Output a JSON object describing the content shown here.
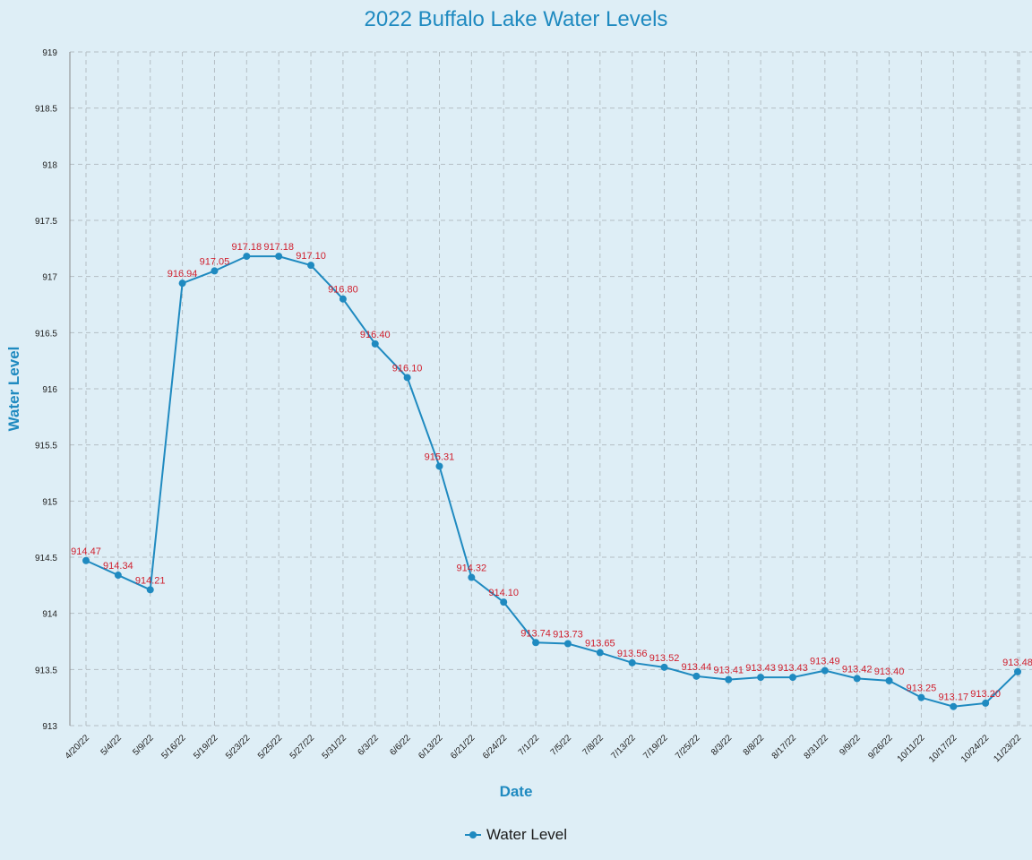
{
  "chart_data": {
    "type": "line",
    "title": "2022 Buffalo Lake Water Levels",
    "xlabel": "Date",
    "ylabel": "Water Level",
    "ylim": [
      913,
      919
    ],
    "yticks": [
      "913",
      "913.5",
      "914",
      "914.5",
      "915",
      "915.5",
      "916",
      "916.5",
      "917",
      "917.5",
      "918",
      "918.5",
      "919"
    ],
    "grid": true,
    "legend_position": "bottom",
    "categories": [
      "4/20/22",
      "5/4/22",
      "5/9/22",
      "5/16/22",
      "5/19/22",
      "5/23/22",
      "5/25/22",
      "5/27/22",
      "5/31/22",
      "6/3/22",
      "6/6/22",
      "6/13/22",
      "6/21/22",
      "6/24/22",
      "7/1/22",
      "7/5/22",
      "7/8/22",
      "7/13/22",
      "7/19/22",
      "7/25/22",
      "8/3/22",
      "8/8/22",
      "8/17/22",
      "8/31/22",
      "9/9/22",
      "9/26/22",
      "10/11/22",
      "10/17/22",
      "10/24/22",
      "11/23/22"
    ],
    "series": [
      {
        "name": "Water Level",
        "color": "#1f8ac0",
        "label_color": "#d0202e",
        "values": [
          914.47,
          914.34,
          914.21,
          916.94,
          917.05,
          917.18,
          917.18,
          917.1,
          916.8,
          916.4,
          916.1,
          915.31,
          914.32,
          914.1,
          913.74,
          913.73,
          913.65,
          913.56,
          913.52,
          913.44,
          913.41,
          913.43,
          913.43,
          913.49,
          913.42,
          913.4,
          913.25,
          913.17,
          913.2,
          913.48
        ],
        "labels": [
          "914.47",
          "914.34",
          "914.21",
          "916.94",
          "917.05",
          "917.18",
          "917.18",
          "917.10",
          "916.80",
          "916.40",
          "916.10",
          "915.31",
          "914.32",
          "914.10",
          "913.74",
          "913.73",
          "913.65",
          "913.56",
          "913.52",
          "913.44",
          "913.41",
          "913.43",
          "913.43",
          "913.49",
          "913.42",
          "913.40",
          "913.25",
          "913.17",
          "913.20",
          "913.48"
        ]
      }
    ]
  },
  "colors": {
    "background": "#deeef6",
    "title": "#1f8ac0",
    "line": "#1f8ac0",
    "data_label": "#d0202e",
    "grid": "#b4bec4",
    "axis": "#888888"
  },
  "legend": {
    "label": "Water Level"
  }
}
